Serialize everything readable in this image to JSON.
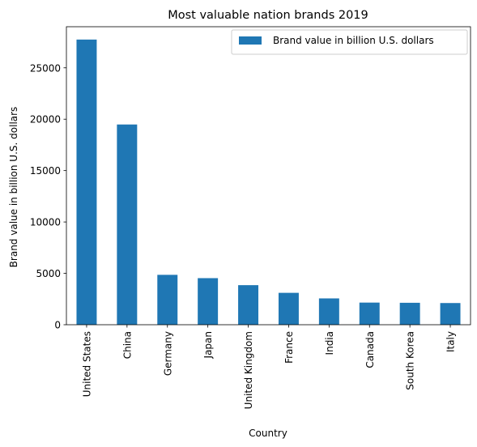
{
  "chart_data": {
    "type": "bar",
    "title": "Most valuable nation brands 2019",
    "xlabel": "Country",
    "ylabel": "Brand value in billion U.S. dollars",
    "categories": [
      "United States",
      "China",
      "Germany",
      "Japan",
      "United Kingdom",
      "France",
      "India",
      "Canada",
      "South Korea",
      "Italy"
    ],
    "series": [
      {
        "name": "Brand value in billion U.S. dollars",
        "values": [
          27751,
          19486,
          4855,
          4533,
          3850,
          3103,
          2562,
          2154,
          2135,
          2110
        ],
        "color": "#1f77b4"
      }
    ],
    "ylim": [
      0,
      29000
    ],
    "yticks": [
      0,
      5000,
      10000,
      15000,
      20000,
      25000
    ],
    "grid": false,
    "legend_position": "top-right"
  }
}
